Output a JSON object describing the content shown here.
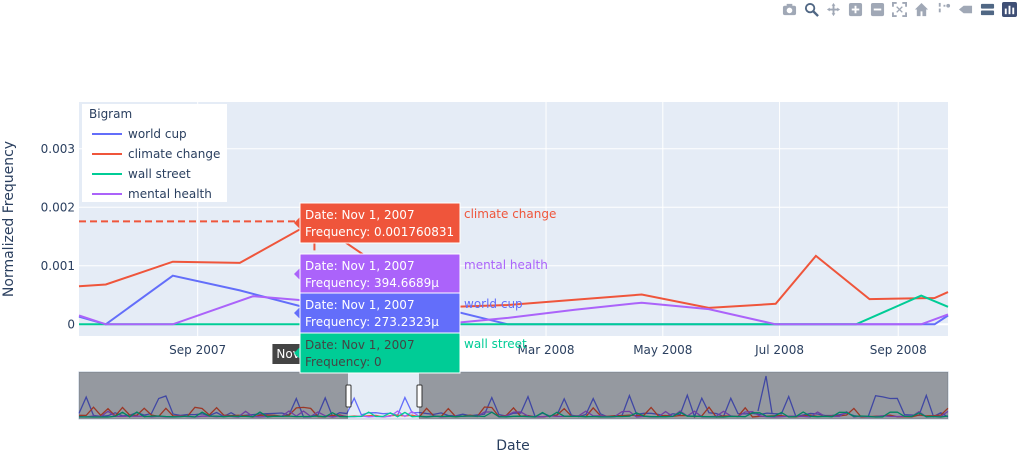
{
  "modebar": [
    {
      "name": "camera-icon"
    },
    {
      "name": "zoom-icon"
    },
    {
      "name": "pan-icon"
    },
    {
      "name": "zoom-in-icon"
    },
    {
      "name": "zoom-out-icon"
    },
    {
      "name": "autoscale-icon"
    },
    {
      "name": "reset-axes-icon"
    },
    {
      "name": "spike-lines-icon"
    },
    {
      "name": "hover-closest-icon"
    },
    {
      "name": "hover-compare-icon"
    },
    {
      "name": "plotly-logo-icon"
    }
  ],
  "chart_data": {
    "type": "line",
    "title": "",
    "xlabel": "Date",
    "ylabel": "Normalized Frequency",
    "x_ticks": [
      "Sep 2007",
      "Mar 2008",
      "May 2008",
      "Jul 2008",
      "Sep 2008"
    ],
    "y_ticks": [
      "0",
      "0.001",
      "0.002",
      "0.003"
    ],
    "ylim": [
      -0.0002,
      0.0038
    ],
    "xlim": [
      "2007-07-01",
      "2008-09-27"
    ],
    "grid": true,
    "legend": {
      "title": "Bigram",
      "position": "top-left"
    },
    "series": [
      {
        "name": "world cup",
        "color": "#636efa",
        "x": [
          "2007-07-01",
          "2007-07-15",
          "2007-08-19",
          "2007-09-23",
          "2007-10-28",
          "2007-11-01",
          "2008-01-06",
          "2008-02-10",
          "2008-03-16",
          "2008-09-20",
          "2008-09-27"
        ],
        "y": [
          0.00013,
          0.0,
          0.00083,
          0.00058,
          0.00028,
          0.000273,
          0.00028,
          0.0,
          0.0,
          0.0,
          0.00015
        ]
      },
      {
        "name": "climate change",
        "color": "#ef553b",
        "x": [
          "2007-07-01",
          "2007-07-15",
          "2007-08-19",
          "2007-09-23",
          "2007-11-01",
          "2008-01-06",
          "2008-02-10",
          "2008-03-16",
          "2008-04-20",
          "2008-05-25",
          "2008-06-29",
          "2008-07-20",
          "2008-08-17",
          "2008-09-20",
          "2008-09-27"
        ],
        "y": [
          0.00065,
          0.00068,
          0.00107,
          0.00105,
          0.00176,
          0.00029,
          0.00033,
          0.00042,
          0.00051,
          0.00028,
          0.00035,
          0.00117,
          0.00043,
          0.00045,
          0.00055
        ]
      },
      {
        "name": "wall street",
        "color": "#00cc96",
        "x": [
          "2007-07-01",
          "2008-08-10",
          "2008-09-13",
          "2008-09-27"
        ],
        "y": [
          0.0,
          0.0,
          0.00049,
          0.0003
        ]
      },
      {
        "name": "mental health",
        "color": "#ab63fa",
        "x": [
          "2007-07-01",
          "2007-07-15",
          "2007-08-19",
          "2007-09-30",
          "2007-11-01",
          "2008-01-06",
          "2008-02-10",
          "2008-03-16",
          "2008-04-20",
          "2008-05-25",
          "2008-06-29",
          "2008-07-20",
          "2008-08-17",
          "2008-09-13",
          "2008-09-27"
        ],
        "y": [
          0.00015,
          0.0,
          0.0,
          0.00048,
          0.000395,
          0.0,
          0.00011,
          0.00025,
          0.00037,
          0.00026,
          0.0,
          0.0,
          0.0,
          0.0,
          0.00017
        ]
      }
    ],
    "hover": {
      "date": "Nov 1, 2007",
      "spike_label": "Nov 1,",
      "labels": [
        {
          "series": "climate change",
          "line1": "Date: Nov 1, 2007",
          "line2": "Frequency: 0.001760831",
          "name": "climate change",
          "color": "#ef553b"
        },
        {
          "series": "mental health",
          "line1": "Date: Nov 1, 2007",
          "line2": "Frequency: 394.6689µ",
          "name": "mental health",
          "color": "#ab63fa"
        },
        {
          "series": "world cup",
          "line1": "Date: Nov 1, 2007",
          "line2": "Frequency: 273.2323µ",
          "name": "world cup",
          "color": "#636efa"
        },
        {
          "series": "wall street",
          "line1": "Date: Nov 1, 2007",
          "line2": "Frequency: 0",
          "name": "wall street",
          "color": "#00cc96"
        }
      ]
    }
  }
}
